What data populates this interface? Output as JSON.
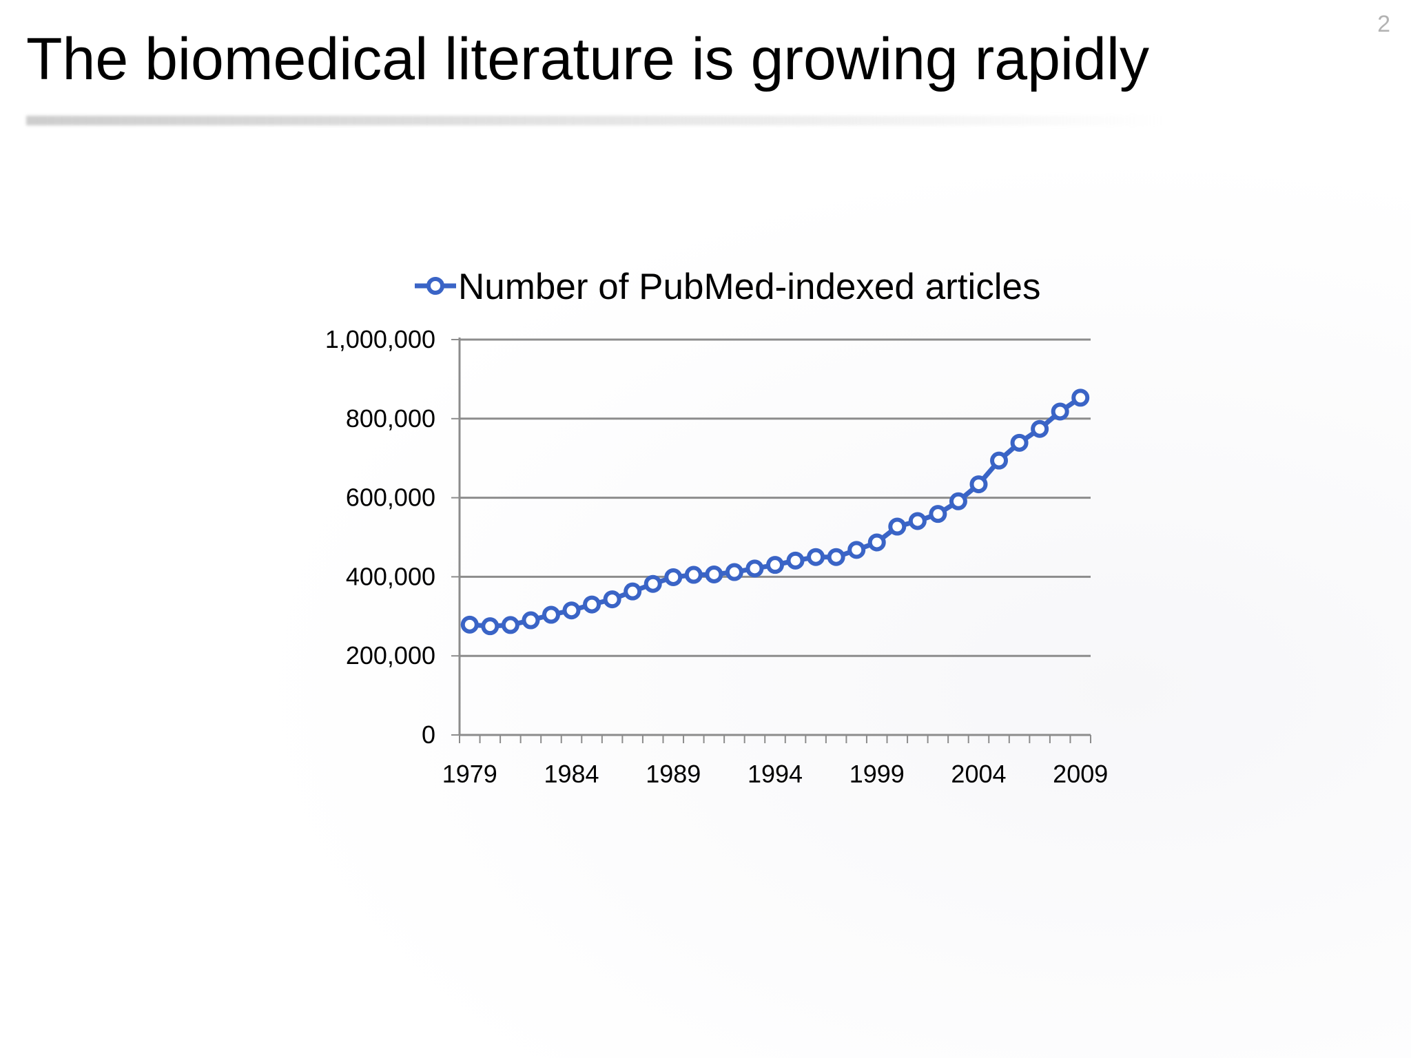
{
  "slide": {
    "title": "The biomedical literature is growing rapidly",
    "page_number": "2"
  },
  "colors": {
    "series": "#3a64c6",
    "gridline": "#8c8c8c",
    "axis": "#8c8c8c",
    "page_number": "#b3b3b3"
  },
  "chart_data": {
    "type": "line",
    "marker": "hollow-circle",
    "legend_position": "top",
    "grid": "horizontal",
    "x": [
      1979,
      1980,
      1981,
      1982,
      1983,
      1984,
      1985,
      1986,
      1987,
      1988,
      1989,
      1990,
      1991,
      1992,
      1993,
      1994,
      1995,
      1996,
      1997,
      1998,
      1999,
      2000,
      2001,
      2002,
      2003,
      2004,
      2005,
      2006,
      2007,
      2008,
      2009
    ],
    "x_tick_labels": [
      "1979",
      "1984",
      "1989",
      "1994",
      "1999",
      "2004",
      "2009"
    ],
    "y_tick_labels": [
      "0",
      "200,000",
      "400,000",
      "600,000",
      "800,000",
      "1,000,000"
    ],
    "ylim": [
      0,
      1000000
    ],
    "series": [
      {
        "name": "Number of PubMed-indexed articles",
        "values": [
          279000,
          275000,
          278000,
          290000,
          304000,
          315000,
          330000,
          343000,
          363000,
          382000,
          399000,
          405000,
          406000,
          412000,
          421000,
          430000,
          441000,
          450000,
          450000,
          468000,
          487000,
          527000,
          541000,
          559000,
          591000,
          634000,
          694000,
          739000,
          774000,
          818000,
          853000
        ]
      }
    ]
  }
}
